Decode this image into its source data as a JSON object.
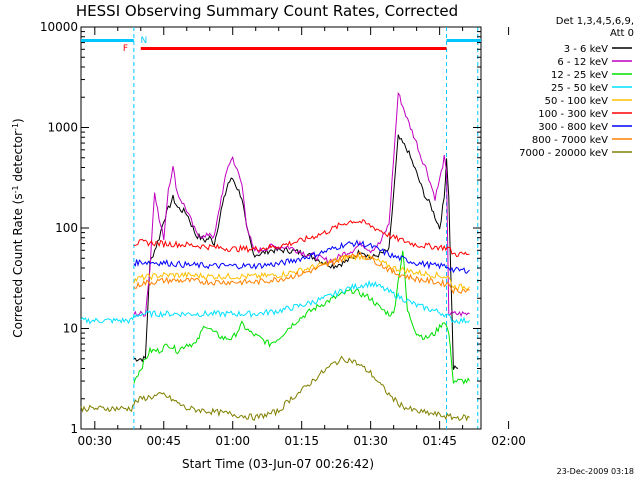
{
  "chart_data": {
    "type": "line",
    "title": "HESSI Observing Summary Count Rates, Corrected",
    "xlabel": "Start Time (03-Jun-07 00:26:42)",
    "ylabel_parts": [
      "Corrected Count Rate (s",
      "-1",
      " detector",
      "-1",
      ")"
    ],
    "y_scale": "log",
    "ylim": [
      1,
      10000
    ],
    "y_ticks": [
      1,
      10,
      100,
      1000,
      10000
    ],
    "y_tick_labels": [
      "1",
      "10",
      "100",
      "1000",
      "10000"
    ],
    "x_range_min": [
      27,
      114
    ],
    "x_ticks_min": [
      30,
      45,
      60,
      75,
      90,
      105,
      120
    ],
    "x_tick_labels": [
      "00:30",
      "00:45",
      "01:00",
      "01:15",
      "01:30",
      "01:45",
      "02:00"
    ],
    "legend_header": [
      "Det 1,3,4,5,6,9,",
      "Att 0"
    ],
    "series": [
      {
        "name": "3 - 6 keV",
        "color": "#000000",
        "x": [
          38.5,
          40,
          41,
          42,
          44,
          45,
          47,
          48,
          50,
          52,
          54,
          55,
          56,
          57.5,
          59,
          60,
          62,
          63,
          64.5,
          66,
          68,
          70,
          72,
          74,
          76,
          78,
          80,
          82,
          84,
          86,
          88,
          89,
          90,
          92,
          94,
          96,
          98,
          100,
          101,
          102,
          103,
          104,
          105,
          106,
          106.5,
          107,
          108,
          109
        ],
        "y": [
          5,
          5,
          5,
          45,
          80,
          120,
          200,
          160,
          140,
          85,
          75,
          80,
          70,
          150,
          280,
          310,
          200,
          100,
          55,
          55,
          60,
          60,
          60,
          58,
          55,
          50,
          45,
          42,
          45,
          50,
          60,
          55,
          50,
          55,
          60,
          800,
          600,
          350,
          260,
          200,
          170,
          130,
          100,
          200,
          500,
          200,
          4,
          4
        ]
      },
      {
        "name": "6 - 12 keV",
        "color": "#c000c0",
        "x": [
          38.5,
          40,
          41,
          42,
          43,
          44,
          45,
          46,
          47,
          48,
          50,
          52,
          54,
          55,
          56,
          57.5,
          59,
          60,
          62,
          63,
          64.5,
          66,
          68,
          70,
          72,
          74,
          76,
          78,
          80,
          82,
          84,
          86,
          88,
          89,
          90,
          92,
          94,
          96,
          98,
          100,
          101,
          102,
          103,
          104,
          105,
          106,
          106.5,
          107,
          108,
          110,
          111.5
        ],
        "y": [
          14,
          14,
          14,
          40,
          240,
          120,
          80,
          250,
          400,
          220,
          150,
          90,
          80,
          90,
          80,
          200,
          420,
          500,
          270,
          110,
          60,
          60,
          65,
          65,
          65,
          60,
          55,
          52,
          48,
          48,
          55,
          60,
          70,
          65,
          60,
          70,
          110,
          2200,
          1200,
          700,
          500,
          400,
          280,
          200,
          300,
          500,
          350,
          14,
          14,
          14,
          14
        ]
      },
      {
        "name": "12 - 25 keV",
        "color": "#00e000",
        "x": [
          38.5,
          40,
          42,
          44,
          46,
          48,
          50,
          52,
          54,
          56,
          58,
          60,
          62,
          64,
          66,
          68,
          70,
          72,
          74,
          76,
          78,
          80,
          82,
          84,
          86,
          88,
          90,
          92,
          94,
          95,
          96,
          97,
          98,
          100,
          102,
          104,
          106,
          107,
          108,
          109,
          111.5
        ],
        "y": [
          3,
          4,
          6,
          6,
          7,
          6,
          7,
          7,
          11,
          9,
          8,
          8,
          11,
          9,
          8,
          7,
          8,
          10,
          12,
          14,
          16,
          18,
          20,
          22,
          24,
          22,
          20,
          16,
          14,
          14,
          30,
          60,
          15,
          9,
          8,
          9,
          12,
          9,
          3,
          3,
          3
        ]
      },
      {
        "name": "25 - 50 keV",
        "color": "#00e0ff",
        "x": [
          27,
          38,
          38.5,
          40,
          45,
          50,
          55,
          60,
          65,
          70,
          75,
          80,
          85,
          88,
          90,
          92,
          95,
          100,
          104,
          106,
          107,
          108,
          110,
          111.5
        ],
        "y": [
          12,
          12,
          13,
          14,
          14,
          14,
          14,
          14,
          14,
          15,
          17,
          20,
          25,
          27,
          28,
          26,
          22,
          17,
          15,
          14,
          13,
          12,
          12,
          12
        ]
      },
      {
        "name": "50 - 100 keV",
        "color": "#ffc000",
        "x": [
          38.5,
          40,
          45,
          50,
          55,
          60,
          65,
          70,
          75,
          80,
          84,
          86,
          88,
          90,
          92,
          95,
          100,
          104,
          106,
          107,
          108,
          110,
          111.5
        ],
        "y": [
          30,
          32,
          34,
          34,
          33,
          33,
          33,
          34,
          38,
          44,
          50,
          52,
          52,
          50,
          46,
          40,
          36,
          34,
          33,
          32,
          26,
          26,
          26
        ]
      },
      {
        "name": "100 - 300 keV",
        "color": "#ff0000",
        "x": [
          38.5,
          40,
          45,
          50,
          55,
          60,
          65,
          70,
          75,
          80,
          84,
          86,
          88,
          90,
          92,
          95,
          100,
          104,
          106,
          107,
          108,
          110,
          111.5
        ],
        "y": [
          70,
          72,
          70,
          68,
          65,
          62,
          62,
          66,
          75,
          90,
          110,
          118,
          115,
          105,
          95,
          80,
          68,
          65,
          64,
          63,
          55,
          55,
          55
        ]
      },
      {
        "name": "300 - 800 keV",
        "color": "#0000ff",
        "x": [
          38.5,
          40,
          45,
          50,
          55,
          60,
          65,
          70,
          75,
          80,
          84,
          86,
          88,
          90,
          92,
          95,
          100,
          104,
          106,
          107,
          108,
          110,
          111.5
        ],
        "y": [
          45,
          46,
          45,
          43,
          42,
          42,
          42,
          44,
          50,
          58,
          68,
          70,
          70,
          66,
          60,
          52,
          45,
          42,
          42,
          41,
          38,
          38,
          38
        ]
      },
      {
        "name": "800 - 7000 keV",
        "color": "#ff8000",
        "x": [
          38.5,
          40,
          45,
          50,
          55,
          60,
          65,
          70,
          75,
          80,
          84,
          86,
          88,
          90,
          92,
          95,
          100,
          104,
          106,
          107,
          108,
          110,
          111.5
        ],
        "y": [
          25,
          28,
          30,
          30,
          29,
          29,
          29,
          31,
          35,
          42,
          50,
          55,
          54,
          50,
          44,
          36,
          31,
          29,
          28,
          28,
          24,
          24,
          24
        ]
      },
      {
        "name": "7000 - 20000 keV",
        "color": "#808000",
        "x": [
          27,
          38,
          38.5,
          40,
          45,
          50,
          55,
          60,
          65,
          70,
          72,
          75,
          78,
          80,
          82,
          84,
          86,
          88,
          90,
          92,
          94,
          96,
          98,
          100,
          104,
          108,
          111.5
        ],
        "y": [
          1.6,
          1.6,
          1.8,
          2,
          2.2,
          1.6,
          1.5,
          1.4,
          1.3,
          1.5,
          1.9,
          2.4,
          3.2,
          3.8,
          4.5,
          5,
          4.8,
          4.2,
          3.6,
          2.8,
          2.2,
          1.8,
          1.6,
          1.5,
          1.4,
          1.3,
          1.3
        ]
      }
    ],
    "annotations": [
      {
        "text": "N",
        "x": 39.5,
        "color": "#00c8ff",
        "row": "top"
      },
      {
        "text": "F",
        "x": 38.5,
        "color": "#ff0000",
        "row": "bar"
      }
    ],
    "night_bars": [
      {
        "from": 27,
        "to": 38.5
      },
      {
        "from": 106.5,
        "to": 114
      }
    ],
    "flare_bar": {
      "from": 40,
      "to": 106.5
    },
    "saa_boundaries": [
      38.5,
      106.5
    ],
    "grid": false,
    "legend_position": "right-outside"
  },
  "footer": {
    "timestamp": "23-Dec-2009 03:18"
  }
}
